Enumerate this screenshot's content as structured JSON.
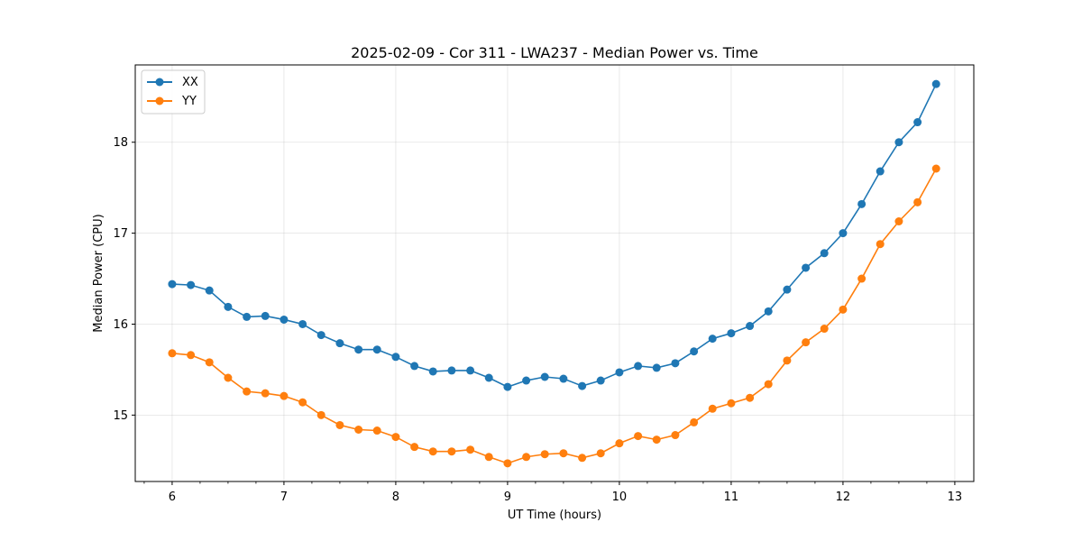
{
  "chart_data": {
    "type": "line",
    "title": "2025-02-09 - Cor 311 - LWA237 - Median Power vs. Time",
    "xlabel": "UT Time (hours)",
    "ylabel": "Median Power (CPU)",
    "xlim": [
      5.67,
      13.17
    ],
    "ylim": [
      14.27,
      18.85
    ],
    "xticks": [
      6,
      7,
      8,
      9,
      10,
      11,
      12,
      13
    ],
    "yticks": [
      15,
      16,
      17,
      18
    ],
    "xtick_labels": [
      "6",
      "7",
      "8",
      "9",
      "10",
      "11",
      "12",
      "13"
    ],
    "ytick_labels": [
      "15",
      "16",
      "17",
      "18"
    ],
    "grid": true,
    "legend_position": "top-left",
    "x": [
      6.0,
      6.167,
      6.333,
      6.5,
      6.667,
      6.833,
      7.0,
      7.167,
      7.333,
      7.5,
      7.667,
      7.833,
      8.0,
      8.167,
      8.333,
      8.5,
      8.667,
      8.833,
      9.0,
      9.167,
      9.333,
      9.5,
      9.667,
      9.833,
      10.0,
      10.167,
      10.333,
      10.5,
      10.667,
      10.833,
      11.0,
      11.167,
      11.333,
      11.5,
      11.667,
      11.833,
      12.0,
      12.167,
      12.333,
      12.5,
      12.667,
      12.833
    ],
    "series": [
      {
        "name": "XX",
        "color": "#1f77b4",
        "values": [
          16.44,
          16.43,
          16.37,
          16.19,
          16.08,
          16.09,
          16.05,
          16.0,
          15.88,
          15.79,
          15.72,
          15.72,
          15.64,
          15.54,
          15.48,
          15.49,
          15.49,
          15.41,
          15.31,
          15.38,
          15.42,
          15.4,
          15.32,
          15.38,
          15.47,
          15.54,
          15.52,
          15.57,
          15.7,
          15.84,
          15.9,
          15.98,
          16.14,
          16.38,
          16.62,
          16.78,
          17.0,
          17.32,
          17.68,
          18.0,
          18.22,
          18.64
        ]
      },
      {
        "name": "YY",
        "color": "#ff7f0e",
        "values": [
          15.68,
          15.66,
          15.58,
          15.41,
          15.26,
          15.24,
          15.21,
          15.14,
          15.0,
          14.89,
          14.84,
          14.83,
          14.76,
          14.65,
          14.6,
          14.6,
          14.62,
          14.54,
          14.47,
          14.54,
          14.57,
          14.58,
          14.53,
          14.58,
          14.69,
          14.77,
          14.73,
          14.78,
          14.92,
          15.07,
          15.13,
          15.19,
          15.34,
          15.6,
          15.8,
          15.95,
          16.16,
          16.5,
          16.88,
          17.13,
          17.34,
          17.71
        ]
      }
    ]
  }
}
